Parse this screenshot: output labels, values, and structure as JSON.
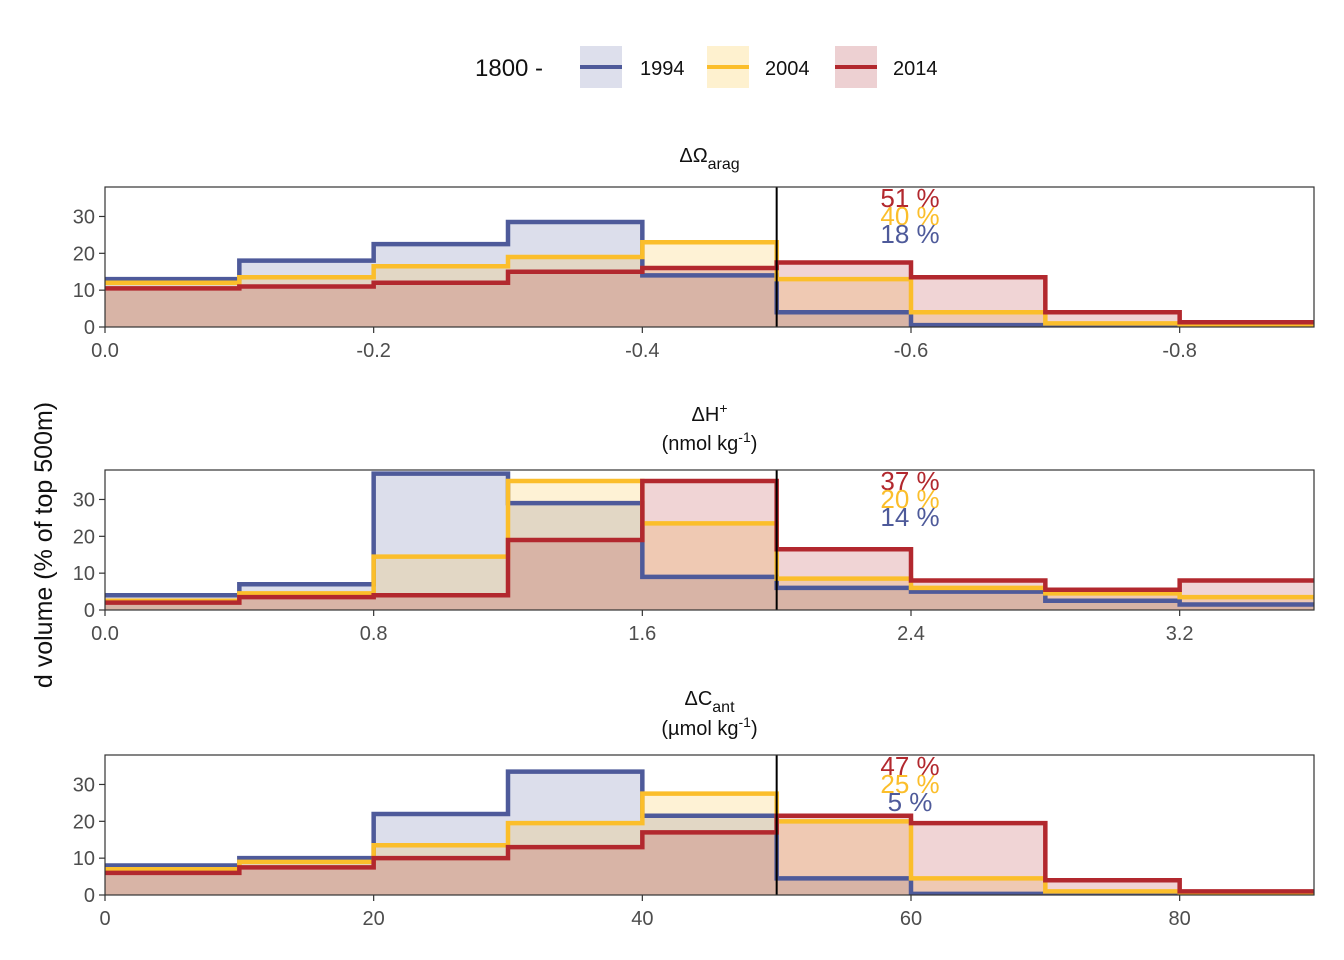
{
  "legend": {
    "title": "1800 -",
    "position": "top",
    "entries": [
      {
        "label": "1994",
        "color": "#4E5A9A",
        "fill": "#DDDFEC"
      },
      {
        "label": "2004",
        "color": "#FBBE2B",
        "fill": "#FEF1CF"
      },
      {
        "label": "2014",
        "color": "#B2282E",
        "fill": "#EDD0D2"
      }
    ]
  },
  "ylabel_visible": "d volume (% of top 500m)",
  "chart_data": [
    {
      "type": "area",
      "title": "ΔΩ",
      "title_sub": "arag",
      "unit_main": "",
      "unit_sup": "",
      "unit_tail": "",
      "xlim": [
        0,
        0.9
      ],
      "x_reversed": true,
      "ylim": [
        0,
        38
      ],
      "xticks": [
        0.0,
        0.2,
        0.4,
        0.6,
        0.8
      ],
      "xtick_labels": [
        "0.0",
        "-0.2",
        "-0.4",
        "-0.6",
        "-0.8"
      ],
      "yticks": [
        0,
        10,
        20,
        30
      ],
      "threshold": 0.5,
      "bin_edges": [
        0,
        0.1,
        0.2,
        0.3,
        0.4,
        0.5,
        0.6,
        0.7,
        0.8,
        0.9
      ],
      "series": [
        {
          "name": "1994",
          "values": [
            13,
            18,
            22.5,
            28.5,
            14,
            4,
            0.5,
            0.3,
            0.2
          ]
        },
        {
          "name": "2004",
          "values": [
            12,
            13.5,
            16.5,
            19,
            23,
            13,
            4,
            1,
            0.5
          ]
        },
        {
          "name": "2014",
          "values": [
            10.5,
            11,
            12,
            15,
            16,
            17.5,
            13.5,
            4,
            1.3
          ]
        }
      ],
      "percent_labels": [
        {
          "series": "2014",
          "text": "51 %"
        },
        {
          "series": "2004",
          "text": "40 %"
        },
        {
          "series": "1994",
          "text": "18 %"
        }
      ]
    },
    {
      "type": "area",
      "title": "ΔH",
      "title_sub": "",
      "title_sup": "+",
      "unit_main": "(nmol kg",
      "unit_sup": "-1",
      "unit_tail": ")",
      "xlim": [
        0,
        3.6
      ],
      "x_reversed": false,
      "ylim": [
        0,
        38
      ],
      "xticks": [
        0.0,
        0.8,
        1.6,
        2.4,
        3.2
      ],
      "xtick_labels": [
        "0.0",
        "0.8",
        "1.6",
        "2.4",
        "3.2"
      ],
      "yticks": [
        0,
        10,
        20,
        30
      ],
      "threshold": 2.0,
      "bin_edges": [
        0,
        0.4,
        0.8,
        1.2,
        1.6,
        2.0,
        2.4,
        2.8,
        3.2,
        3.6
      ],
      "series": [
        {
          "name": "1994",
          "values": [
            4,
            7,
            37,
            29,
            9,
            6,
            5,
            2.5,
            1.5
          ]
        },
        {
          "name": "2004",
          "values": [
            2.5,
            4.5,
            14.5,
            35,
            23.5,
            8.5,
            6,
            4.5,
            3.5
          ]
        },
        {
          "name": "2014",
          "values": [
            2,
            3.5,
            4,
            19,
            35,
            16.5,
            8,
            5.5,
            8
          ]
        }
      ],
      "percent_labels": [
        {
          "series": "2014",
          "text": "37 %"
        },
        {
          "series": "2004",
          "text": "20 %"
        },
        {
          "series": "1994",
          "text": "14 %"
        }
      ]
    },
    {
      "type": "area",
      "title": "ΔC",
      "title_sub": "ant",
      "title_sup": "",
      "unit_main": "(µmol kg",
      "unit_sup": "-1",
      "unit_tail": ")",
      "xlim": [
        0,
        90
      ],
      "x_reversed": false,
      "ylim": [
        0,
        38
      ],
      "xticks": [
        0,
        20,
        40,
        60,
        80
      ],
      "xtick_labels": [
        "0",
        "20",
        "40",
        "60",
        "80"
      ],
      "yticks": [
        0,
        10,
        20,
        30
      ],
      "threshold": 50,
      "bin_edges": [
        0,
        10,
        20,
        30,
        40,
        50,
        60,
        70,
        80,
        90
      ],
      "series": [
        {
          "name": "1994",
          "values": [
            8,
            10,
            22,
            33.5,
            21.5,
            4.5,
            0.3,
            0.2,
            0.1
          ]
        },
        {
          "name": "2004",
          "values": [
            7,
            9,
            13.5,
            19.5,
            27.5,
            20,
            4.5,
            1,
            0.5
          ]
        },
        {
          "name": "2014",
          "values": [
            6,
            7.5,
            10,
            13,
            17,
            21.5,
            19.5,
            4,
            1
          ]
        }
      ],
      "percent_labels": [
        {
          "series": "2014",
          "text": "47 %"
        },
        {
          "series": "2004",
          "text": "25 %"
        },
        {
          "series": "1994",
          "text": "5 %"
        }
      ]
    }
  ]
}
